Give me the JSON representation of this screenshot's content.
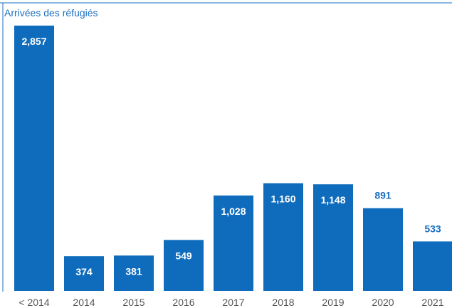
{
  "chart_data": {
    "type": "bar",
    "title": "Arrivées des réfugiés",
    "categories": [
      "< 2014",
      "2014",
      "2015",
      "2016",
      "2017",
      "2018",
      "2019",
      "2020",
      "2021"
    ],
    "values": [
      2857,
      374,
      381,
      549,
      1028,
      1160,
      1148,
      891,
      533
    ],
    "value_labels": [
      "2,857",
      "374",
      "381",
      "549",
      "1,028",
      "1,160",
      "1,148",
      "891",
      "533"
    ],
    "label_position": [
      "inside",
      "inside",
      "inside",
      "inside",
      "inside",
      "inside",
      "inside",
      "above",
      "above"
    ],
    "ylim": [
      0,
      3000
    ],
    "grid": false,
    "legend": "none",
    "colors": {
      "bar": "#0f6cbd",
      "label_inside": "#ffffff",
      "label_above": "#1a6fc0",
      "title": "#1a6fc0",
      "axis": "#1a6fc0",
      "tick": "#555555"
    }
  }
}
